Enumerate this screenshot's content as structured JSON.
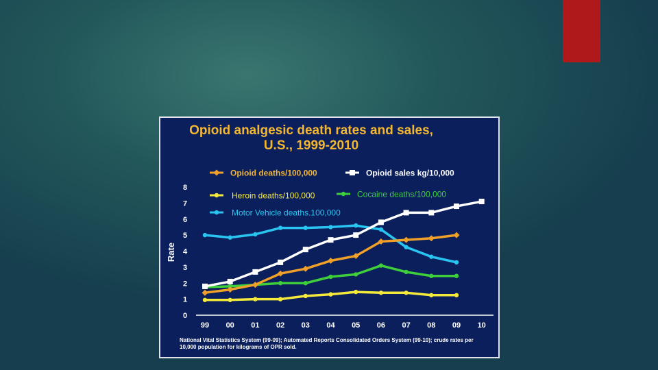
{
  "slide": {
    "accent_color": "#b0191b"
  },
  "chart_data": {
    "type": "line",
    "title_lines": [
      "Opioid analgesic death rates and sales,",
      "U.S., 1999-2010"
    ],
    "xlabel": "",
    "ylabel": "Rate",
    "categories": [
      "99",
      "00",
      "01",
      "02",
      "03",
      "04",
      "05",
      "06",
      "07",
      "08",
      "09",
      "10"
    ],
    "ylim": [
      0,
      8
    ],
    "yticks": [
      "0",
      "1",
      "2",
      "3",
      "4",
      "5",
      "6",
      "7",
      "8"
    ],
    "grid": false,
    "series": [
      {
        "name": "Opioid deaths/100,000",
        "color": "#f0a028",
        "marker": "diamond",
        "values": [
          1.4,
          1.6,
          1.9,
          2.6,
          2.9,
          3.4,
          3.7,
          4.6,
          4.7,
          4.8,
          5.0,
          null
        ]
      },
      {
        "name": "Opioid sales kg/10,000",
        "color": "#ffffff",
        "marker": "square",
        "values": [
          1.8,
          2.1,
          2.7,
          3.3,
          4.1,
          4.7,
          5.0,
          5.8,
          6.4,
          6.4,
          6.8,
          7.1
        ]
      },
      {
        "name": "Heroin deaths/100,000",
        "color": "#f5ea3c",
        "marker": "dot",
        "values": [
          0.95,
          0.95,
          1.0,
          1.0,
          1.2,
          1.3,
          1.45,
          1.4,
          1.4,
          1.25,
          1.25,
          null
        ]
      },
      {
        "name": "Cocaine deaths/100,000",
        "color": "#3ecf3a",
        "marker": "dot",
        "values": [
          1.75,
          1.8,
          1.9,
          2.0,
          2.0,
          2.4,
          2.55,
          3.1,
          2.7,
          2.45,
          2.45,
          null
        ]
      },
      {
        "name": "Motor Vehicle deaths.100,000",
        "color": "#29c5f0",
        "marker": "dot",
        "values": [
          5.0,
          4.85,
          5.05,
          5.45,
          5.45,
          5.5,
          5.6,
          5.35,
          4.25,
          3.65,
          3.3,
          null
        ]
      }
    ],
    "source_note": "National Vital Statistics System (99-09); Automated Reports Consolidated Orders System (99-10); crude rates per 10,000 population for  kilograms of OPR sold."
  }
}
